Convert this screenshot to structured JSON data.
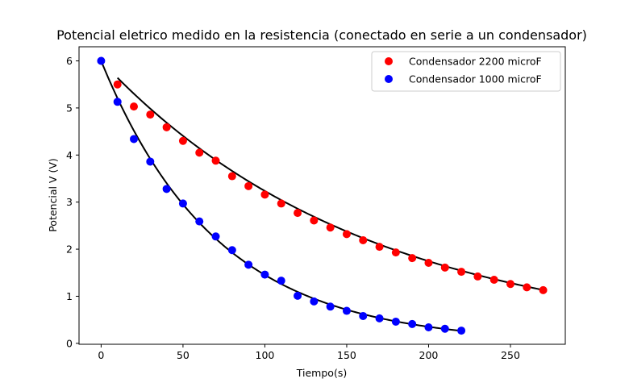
{
  "chart_data": {
    "type": "scatter",
    "title": "Potencial eletrico medido en la resistencia (conectado en serie a un condensador)",
    "xlabel": "Tiempo(s)",
    "ylabel": "Potencial V (V)",
    "xlim": [
      -13.5,
      283.5
    ],
    "ylim": [
      -0.02,
      6.3
    ],
    "xticks": [
      0,
      50,
      100,
      150,
      200,
      250
    ],
    "yticks": [
      0,
      1,
      2,
      3,
      4,
      5,
      6
    ],
    "grid": false,
    "legend_position": "top-right",
    "series": [
      {
        "name": "Condensador 2200 microF",
        "color": "#ff0000",
        "x": [
          10,
          20,
          30,
          40,
          50,
          60,
          70,
          80,
          90,
          100,
          110,
          120,
          130,
          140,
          150,
          160,
          170,
          180,
          190,
          200,
          210,
          220,
          230,
          240,
          250,
          260,
          270
        ],
        "y": [
          5.5,
          5.03,
          4.86,
          4.59,
          4.3,
          4.05,
          3.88,
          3.55,
          3.34,
          3.16,
          2.97,
          2.77,
          2.61,
          2.46,
          2.32,
          2.19,
          2.05,
          1.93,
          1.81,
          1.71,
          1.61,
          1.52,
          1.42,
          1.35,
          1.26,
          1.19,
          1.13
        ]
      },
      {
        "name": "Condensador 1000 microF",
        "color": "#0000ff",
        "x": [
          0,
          10,
          20,
          30,
          40,
          50,
          60,
          70,
          80,
          90,
          100,
          110,
          120,
          130,
          140,
          150,
          160,
          170,
          180,
          190,
          200,
          210,
          220
        ],
        "y": [
          6.0,
          5.13,
          4.34,
          3.86,
          3.28,
          2.97,
          2.59,
          2.27,
          1.98,
          1.67,
          1.46,
          1.33,
          1.01,
          0.89,
          0.78,
          0.69,
          0.58,
          0.53,
          0.46,
          0.41,
          0.34,
          0.31,
          0.27
        ]
      }
    ],
    "fit_curves": [
      {
        "color": "#000000",
        "x_start": 10,
        "x_end": 270,
        "a": 6.0,
        "tau": 162
      },
      {
        "color": "#000000",
        "x_start": 0,
        "x_end": 220,
        "a": 6.0,
        "tau": 70.5
      }
    ]
  }
}
